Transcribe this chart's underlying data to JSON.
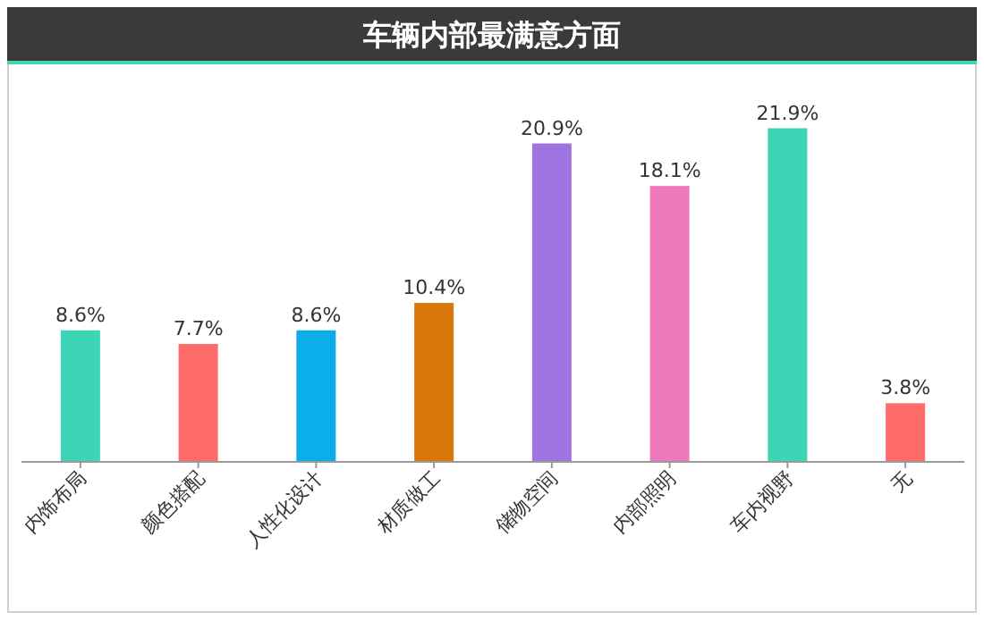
{
  "chart_data": {
    "type": "bar",
    "title": "车辆内部最满意方面",
    "categories": [
      "内饰布局",
      "颜色搭配",
      "人性化设计",
      "材质做工",
      "储物空间",
      "内部照明",
      "车内视野",
      "无"
    ],
    "values": [
      8.6,
      7.7,
      8.6,
      10.4,
      20.9,
      18.1,
      21.9,
      3.8
    ],
    "colors": [
      "#3dd5b5",
      "#fd6b6b",
      "#0caee9",
      "#d97708",
      "#a074e0",
      "#ee79bd",
      "#3dd5b5",
      "#fd6b6b"
    ],
    "value_labels": [
      "8.6%",
      "7.7%",
      "8.6%",
      "10.4%",
      "20.9%",
      "18.1%",
      "21.9%",
      "3.8%"
    ]
  }
}
